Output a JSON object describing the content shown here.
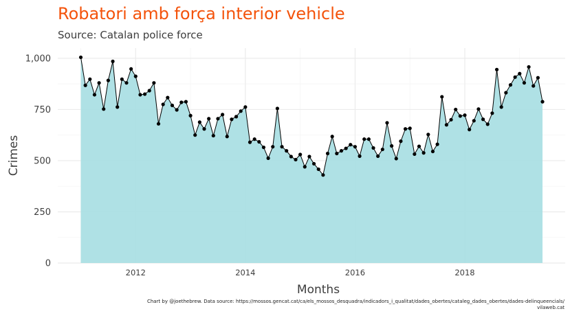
{
  "title": "Robatori amb força interior vehicle",
  "subtitle": "Source: Catalan police force",
  "caption_line1": "Chart by @joethebrew. Data source: https://mossos.gencat.cat/ca/els_mossos_desquadra/indicadors_i_qualitat/dades_obertes/cataleg_dades_obertes/dades-delinqueencials/",
  "caption_line2": "vilaweb.cat",
  "colors": {
    "title": "#f4530b",
    "area_fill": "#abdfe4",
    "line": "#000000",
    "grid": "#ebebeb"
  },
  "chart_data": {
    "type": "area",
    "title": "Robatori amb força interior vehicle",
    "subtitle": "Source: Catalan police force",
    "xlabel": "Months",
    "ylabel": "Crimes",
    "x_tick_labels": [
      "2012",
      "2014",
      "2016",
      "2018"
    ],
    "x_ticks": [
      2012,
      2014,
      2016,
      2018
    ],
    "xlim": [
      2010.58,
      2019.83
    ],
    "y_tick_labels": [
      "0",
      "250",
      "500",
      "750",
      "1,000"
    ],
    "y_ticks": [
      0,
      250,
      500,
      750,
      1000
    ],
    "ylim": [
      0,
      1050
    ],
    "grid": true,
    "x_start": "2011-01",
    "x_step": "1 month",
    "values": [
      1005,
      868,
      898,
      822,
      880,
      752,
      892,
      985,
      762,
      898,
      880,
      948,
      912,
      822,
      825,
      842,
      880,
      680,
      775,
      808,
      770,
      748,
      785,
      788,
      720,
      625,
      688,
      655,
      705,
      622,
      705,
      725,
      618,
      702,
      715,
      742,
      762,
      590,
      605,
      592,
      565,
      512,
      568,
      755,
      568,
      548,
      520,
      505,
      530,
      470,
      520,
      485,
      458,
      430,
      535,
      618,
      535,
      548,
      560,
      578,
      568,
      522,
      605,
      605,
      562,
      522,
      555,
      685,
      572,
      510,
      595,
      655,
      658,
      532,
      570,
      538,
      628,
      545,
      580,
      812,
      675,
      700,
      750,
      718,
      722,
      652,
      695,
      752,
      702,
      678,
      732,
      945,
      762,
      832,
      870,
      908,
      925,
      880,
      958,
      865,
      905,
      788
    ]
  }
}
